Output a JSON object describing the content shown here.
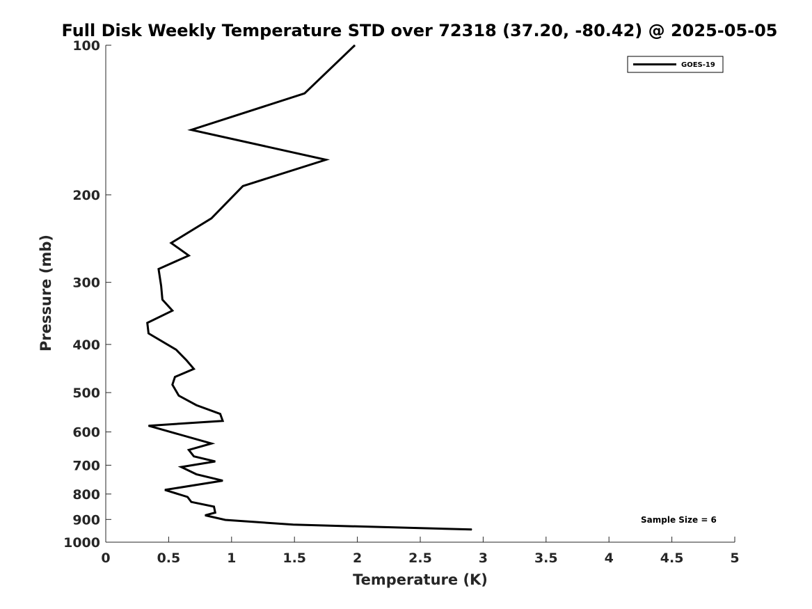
{
  "chart_data": {
    "type": "line",
    "title": "Full Disk Weekly Temperature STD over 72318 (37.20, -80.42) @ 2025-05-05",
    "xlabel": "Temperature (K)",
    "ylabel": "Pressure (mb)",
    "xlim": [
      0,
      5
    ],
    "ylim": [
      100,
      1000
    ],
    "yscale": "log",
    "yreversed": true,
    "xticks": [
      0,
      0.5,
      1,
      1.5,
      2,
      2.5,
      3,
      3.5,
      4,
      4.5,
      5
    ],
    "xtick_labels": [
      "0",
      "0.5",
      "1",
      "1.5",
      "2",
      "2.5",
      "3",
      "3.5",
      "4",
      "4.5",
      "5"
    ],
    "yticks": [
      100,
      200,
      300,
      400,
      500,
      600,
      700,
      800,
      900,
      1000
    ],
    "ytick_labels": [
      "100",
      "200",
      "300",
      "400",
      "500",
      "600",
      "700",
      "800",
      "900",
      "1000"
    ],
    "grid": false,
    "legend_position": "top-right",
    "series": [
      {
        "name": "GOES-19",
        "color": "#000000",
        "points": [
          [
            1.98,
            100
          ],
          [
            1.58,
            125
          ],
          [
            0.68,
            148
          ],
          [
            1.75,
            170
          ],
          [
            1.09,
            192
          ],
          [
            0.84,
            223
          ],
          [
            0.52,
            250
          ],
          [
            0.66,
            265
          ],
          [
            0.42,
            282
          ],
          [
            0.44,
            305
          ],
          [
            0.45,
            325
          ],
          [
            0.53,
            342
          ],
          [
            0.33,
            362
          ],
          [
            0.34,
            380
          ],
          [
            0.56,
            410
          ],
          [
            0.64,
            430
          ],
          [
            0.7,
            448
          ],
          [
            0.55,
            465
          ],
          [
            0.53,
            482
          ],
          [
            0.58,
            507
          ],
          [
            0.72,
            530
          ],
          [
            0.91,
            552
          ],
          [
            0.93,
            570
          ],
          [
            0.34,
            583
          ],
          [
            0.84,
            633
          ],
          [
            0.66,
            652
          ],
          [
            0.7,
            672
          ],
          [
            0.87,
            688
          ],
          [
            0.6,
            706
          ],
          [
            0.72,
            730
          ],
          [
            0.93,
            752
          ],
          [
            0.47,
            785
          ],
          [
            0.65,
            811
          ],
          [
            0.68,
            830
          ],
          [
            0.86,
            848
          ],
          [
            0.87,
            872
          ],
          [
            0.79,
            883
          ],
          [
            0.95,
            902
          ],
          [
            1.49,
            922
          ],
          [
            2.91,
            943
          ]
        ]
      }
    ],
    "annotations": [
      "Sample Size = 6"
    ]
  }
}
